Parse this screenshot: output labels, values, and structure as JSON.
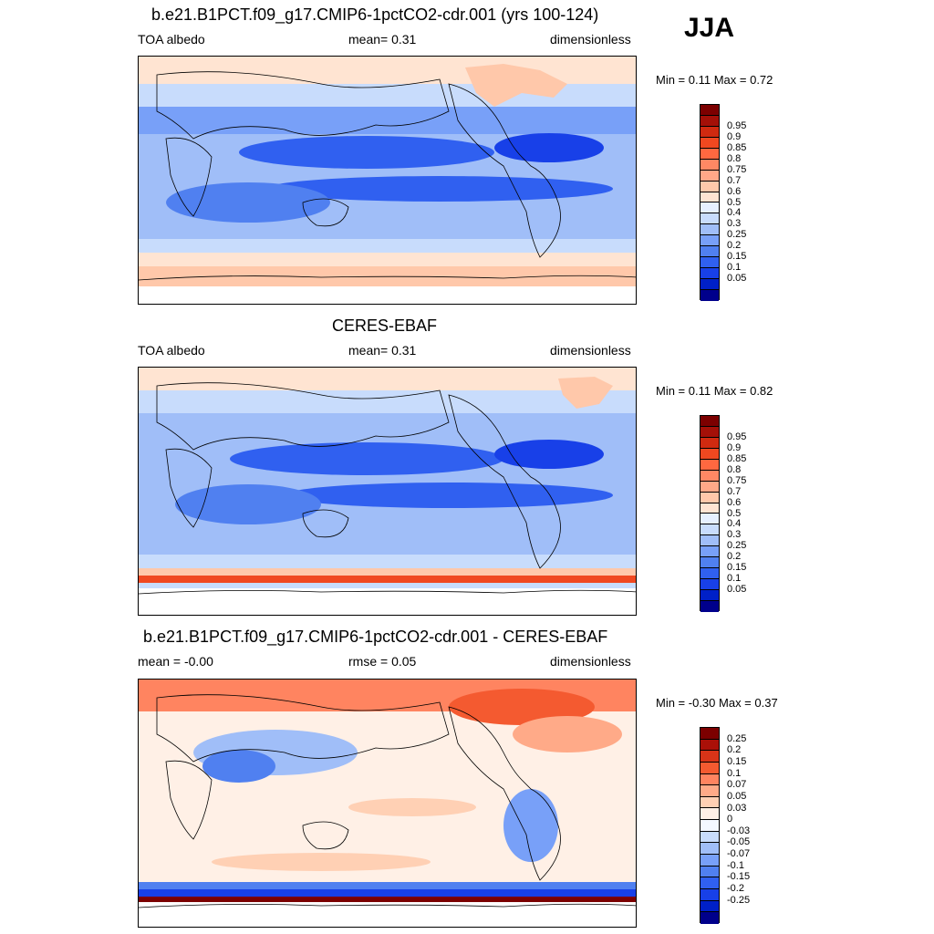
{
  "season": "JJA",
  "palette_pos": [
    "#00008b",
    "#0020c8",
    "#1840e8",
    "#3060f0",
    "#5080f0",
    "#78a0f8",
    "#a0bef8",
    "#c8dcfc",
    "#e6f0ff",
    "#ffe4d2",
    "#ffc8aa",
    "#ffa888",
    "#ff8864",
    "#ff6840",
    "#f04820",
    "#d02a10",
    "#a41008",
    "#7c0000"
  ],
  "palette_diff": [
    "#00008b",
    "#0020c8",
    "#1840e8",
    "#3060f0",
    "#5080f0",
    "#78a0f8",
    "#a0bef8",
    "#c8dcfc",
    "#f4f8ff",
    "#fff0e6",
    "#ffd0b4",
    "#ffaa88",
    "#ff8460",
    "#f45a30",
    "#d83418",
    "#aa1008",
    "#7c0000"
  ],
  "panels": [
    {
      "title": "b.e21.B1PCT.f09_g17.CMIP6-1pctCO2-cdr.001 (yrs 100-124)",
      "left_label": "TOA albedo",
      "center_label": "mean=   0.31",
      "right_label": "dimensionless",
      "minmax": "Min =   0.11 Max =   0.72",
      "cb_labels": [
        "0.95",
        "0.9",
        "0.85",
        "0.8",
        "0.75",
        "0.7",
        "0.6",
        "0.5",
        "0.4",
        "0.3",
        "0.25",
        "0.2",
        "0.15",
        "0.1",
        "0.05"
      ]
    },
    {
      "title": "CERES-EBAF",
      "left_label": "TOA albedo",
      "center_label": "mean=   0.31",
      "right_label": "dimensionless",
      "minmax": "Min =   0.11 Max =   0.82",
      "cb_labels": [
        "0.95",
        "0.9",
        "0.85",
        "0.8",
        "0.75",
        "0.7",
        "0.6",
        "0.5",
        "0.4",
        "0.3",
        "0.25",
        "0.2",
        "0.15",
        "0.1",
        "0.05"
      ]
    },
    {
      "title": "b.e21.B1PCT.f09_g17.CMIP6-1pctCO2-cdr.001 - CERES-EBAF",
      "left_label": "mean =  -0.00",
      "center_label": "rmse =   0.05",
      "right_label": "dimensionless",
      "minmax": "Min =  -0.30 Max =   0.37",
      "cb_labels": [
        "0.25",
        "0.2",
        "0.15",
        "0.1",
        "0.07",
        "0.05",
        "0.03",
        "0",
        "-0.03",
        "-0.05",
        "-0.07",
        "-0.1",
        "-0.15",
        "-0.2",
        "-0.25"
      ]
    }
  ]
}
